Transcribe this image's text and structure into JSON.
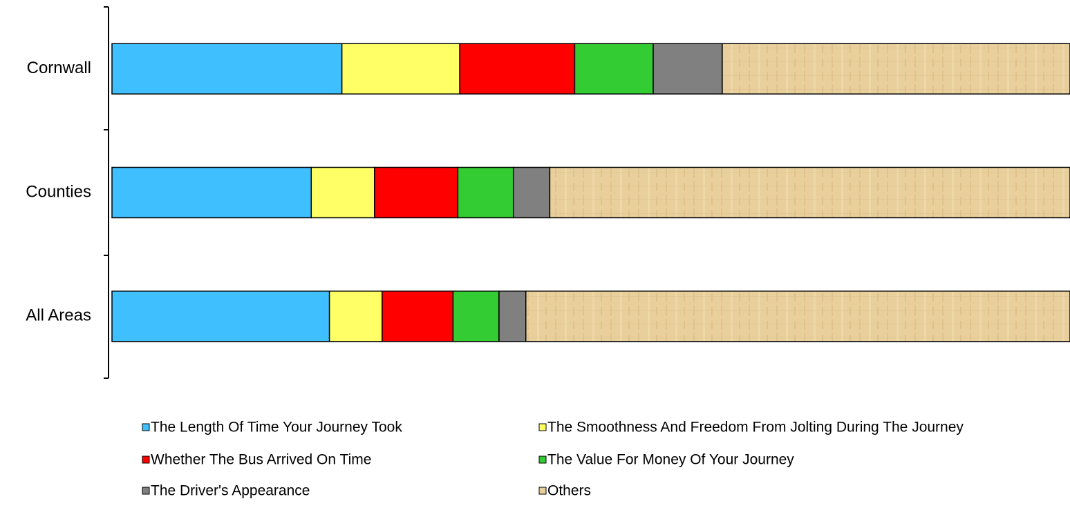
{
  "chart_data": {
    "type": "stacked-bar",
    "orientation": "horizontal",
    "categories": [
      "Cornwall",
      "Counties",
      "All Areas"
    ],
    "xlim": [
      0,
      100
    ],
    "series": [
      {
        "name": "The Length Of Time Your Journey Took",
        "color": "#40bfff",
        "values": [
          24.0,
          20.8,
          22.7
        ]
      },
      {
        "name": "The Smoothness And Freedom From Jolting During The Journey",
        "color": "#ffff66",
        "values": [
          12.3,
          6.6,
          5.5
        ]
      },
      {
        "name": "Whether The Bus Arrived On Time",
        "color": "#ff0000",
        "values": [
          12.0,
          8.7,
          7.4
        ]
      },
      {
        "name": "The Value For Money Of Your Journey",
        "color": "#33cc33",
        "values": [
          8.2,
          5.8,
          4.8
        ]
      },
      {
        "name": "The Driver's Appearance",
        "color": "#808080",
        "values": [
          7.2,
          3.8,
          2.8
        ]
      },
      {
        "name": "Others",
        "color": "#e8cf9c",
        "values": [
          36.3,
          54.3,
          56.8
        ]
      }
    ],
    "legend": "bottom"
  }
}
